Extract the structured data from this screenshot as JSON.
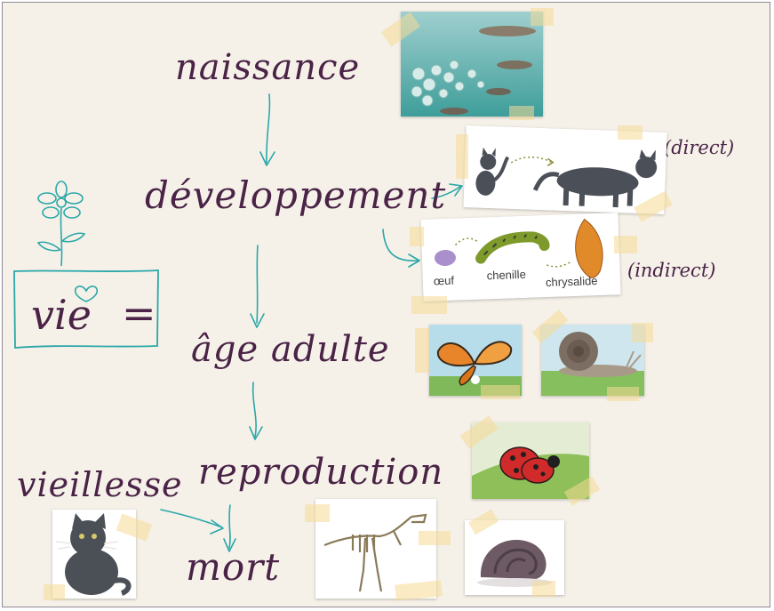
{
  "stages": {
    "naissance": "naissance",
    "developpement": "développement",
    "age_adulte": "âge adulte",
    "reproduction": "reproduction",
    "mort": "mort",
    "vieillesse": "vieillesse"
  },
  "vie_sign": {
    "word": "vie",
    "equals": "="
  },
  "notes": {
    "direct": "(direct)",
    "indirect": "(indirect)"
  },
  "metamorphosis_labels": {
    "egg": "œuf",
    "caterpillar": "chenille",
    "chrysalis": "chrysalide"
  },
  "colors": {
    "board": "#f5f1e9",
    "handwriting": "#4a2346",
    "arrow": "#2aa7a8",
    "tape": "#f5da96"
  }
}
